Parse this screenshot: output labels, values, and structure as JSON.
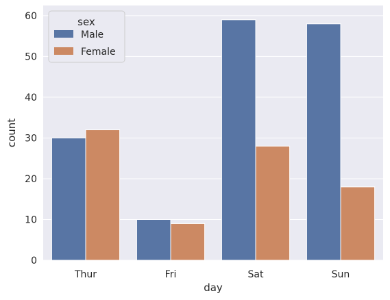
{
  "chart_data": {
    "type": "bar",
    "title": "",
    "xlabel": "day",
    "ylabel": "count",
    "categories": [
      "Thur",
      "Fri",
      "Sat",
      "Sun"
    ],
    "ylim": [
      0,
      62.5
    ],
    "yticks": [
      0,
      10,
      20,
      30,
      40,
      50,
      60
    ],
    "grid": true,
    "legend": {
      "title": "sex",
      "placement": "top-left"
    },
    "series": [
      {
        "name": "Male",
        "color": "#5875a4",
        "values": [
          30,
          10,
          59,
          58
        ]
      },
      {
        "name": "Female",
        "color": "#cc8963",
        "values": [
          32,
          9,
          28,
          18
        ]
      }
    ],
    "background": "#eaeaf2"
  }
}
